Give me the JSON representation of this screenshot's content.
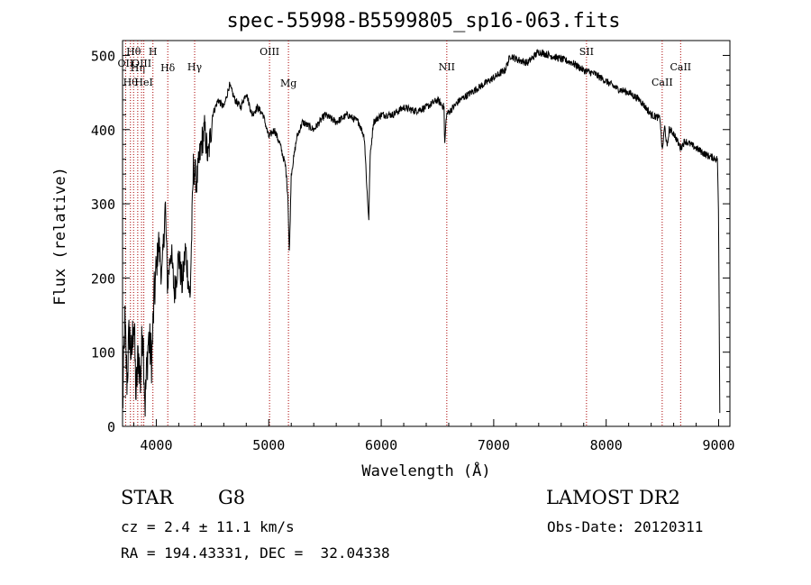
{
  "chart_data": {
    "type": "line",
    "title": "spec-55998-B5599805_sp16-063.fits",
    "xlabel": "Wavelength (Å)",
    "ylabel": "Flux (relative)",
    "xlim": [
      3700,
      9100
    ],
    "ylim": [
      0,
      520
    ],
    "xticks": [
      4000,
      5000,
      6000,
      7000,
      8000,
      9000
    ],
    "yticks": [
      0,
      100,
      200,
      300,
      400,
      500
    ],
    "grid": false,
    "line_color": "#000000",
    "marker_color": "#aa0000",
    "series": [
      {
        "x": [
          3700,
          3720,
          3740,
          3760,
          3780,
          3800,
          3820,
          3840,
          3860,
          3880,
          3900,
          3930,
          3960,
          3980,
          4000,
          4020,
          4050,
          4080,
          4100,
          4130,
          4160,
          4200,
          4230,
          4260,
          4300,
          4330,
          4360,
          4400,
          4430,
          4460,
          4500,
          4550,
          4600,
          4650,
          4700,
          4750,
          4800,
          4850,
          4900,
          4950,
          5000,
          5050,
          5100,
          5150,
          5170,
          5183,
          5200,
          5250,
          5300,
          5400,
          5500,
          5600,
          5700,
          5800,
          5850,
          5880,
          5890,
          5900,
          5930,
          6000,
          6100,
          6200,
          6300,
          6400,
          6500,
          6560,
          6563,
          6580,
          6700,
          6800,
          6900,
          7000,
          7100,
          7150,
          7200,
          7300,
          7400,
          7500,
          7600,
          7700,
          7800,
          7900,
          8000,
          8100,
          8200,
          8300,
          8400,
          8480,
          8498,
          8520,
          8542,
          8560,
          8600,
          8662,
          8700,
          8800,
          8900,
          8990,
          9000,
          9010
        ],
        "values": [
          20,
          140,
          60,
          130,
          90,
          150,
          40,
          100,
          60,
          140,
          30,
          120,
          90,
          170,
          210,
          250,
          200,
          300,
          190,
          240,
          180,
          230,
          190,
          240,
          170,
          350,
          330,
          380,
          400,
          360,
          420,
          440,
          430,
          460,
          440,
          430,
          450,
          420,
          430,
          420,
          390,
          400,
          380,
          350,
          310,
          230,
          340,
          390,
          410,
          400,
          420,
          410,
          420,
          410,
          390,
          300,
          280,
          360,
          410,
          420,
          420,
          430,
          425,
          430,
          440,
          430,
          375,
          420,
          440,
          450,
          460,
          470,
          480,
          500,
          495,
          490,
          505,
          500,
          495,
          490,
          480,
          475,
          465,
          455,
          450,
          440,
          420,
          415,
          370,
          405,
          375,
          400,
          395,
          375,
          385,
          375,
          365,
          360,
          270,
          20
        ]
      }
    ],
    "line_markers": [
      {
        "x": 3727,
        "label": "OII"
      },
      {
        "x": 3770,
        "label": "Hθ"
      },
      {
        "x": 3798,
        "label": "Hθ"
      },
      {
        "x": 3835,
        "label": "Hη"
      },
      {
        "x": 3869,
        "label": "OIII"
      },
      {
        "x": 3889,
        "label": "HeI"
      },
      {
        "x": 3970,
        "label": "H"
      },
      {
        "x": 4102,
        "label": "Hδ"
      },
      {
        "x": 4341,
        "label": "Hγ"
      },
      {
        "x": 5007,
        "label": "OIII"
      },
      {
        "x": 5175,
        "label": "Mg"
      },
      {
        "x": 6583,
        "label": "NII"
      },
      {
        "x": 7825,
        "label": "SII"
      },
      {
        "x": 8498,
        "label": "CaII"
      },
      {
        "x": 8662,
        "label": "CaII"
      }
    ]
  },
  "footer": {
    "object_class": "STAR",
    "subclass": "G8",
    "survey": "LAMOST DR2",
    "redshift": "cz = 2.4 ± 11.1 km/s",
    "obs_date": "Obs-Date: 20120311",
    "coords": "RA = 194.43331, DEC =  32.04338"
  }
}
